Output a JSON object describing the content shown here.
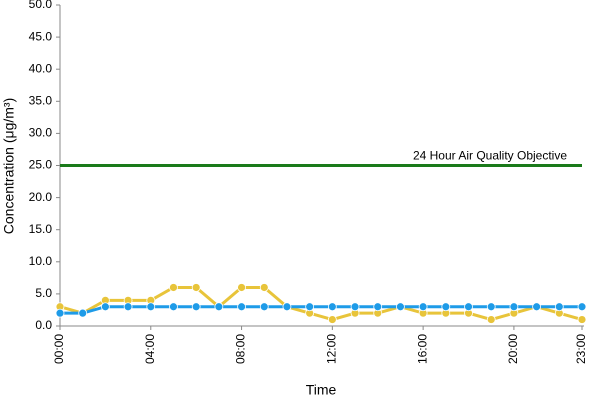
{
  "chart_data": {
    "type": "line",
    "x_label": "Time",
    "y_label": "Concentration (μg/m³)",
    "categories": [
      "00:00",
      null,
      null,
      null,
      "04:00",
      null,
      null,
      null,
      "08:00",
      null,
      null,
      null,
      "12:00",
      null,
      null,
      null,
      "16:00",
      null,
      null,
      null,
      "20:00",
      null,
      null,
      "23:00"
    ],
    "series": [
      {
        "color": "#e8c43a",
        "values": [
          3,
          2,
          4,
          4,
          4,
          6,
          6,
          3,
          6,
          6,
          3,
          2,
          1,
          2,
          2,
          3,
          2,
          2,
          2,
          1,
          2,
          3,
          2,
          1
        ]
      },
      {
        "color": "#1e9be8",
        "values": [
          2,
          2,
          3,
          3,
          3,
          3,
          3,
          3,
          3,
          3,
          3,
          3,
          3,
          3,
          3,
          3,
          3,
          3,
          3,
          3,
          3,
          3,
          3,
          3
        ]
      },
      {
        "name": "24 Hour Air Quality Objective",
        "color": "#1a7a1a",
        "markers": false,
        "values": [
          25,
          25,
          25,
          25,
          25,
          25,
          25,
          25,
          25,
          25,
          25,
          25,
          25,
          25,
          25,
          25,
          25,
          25,
          25,
          25,
          25,
          25,
          25,
          25
        ]
      }
    ],
    "ylim": [
      0,
      50
    ],
    "yticks": [
      {
        "value": 0,
        "label": "0.0"
      },
      {
        "value": 5,
        "label": "5.0"
      },
      {
        "value": 10,
        "label": "10.0"
      },
      {
        "value": 15,
        "label": "15.0"
      },
      {
        "value": 20,
        "label": "20.0"
      },
      {
        "value": 25,
        "label": "25.0"
      },
      {
        "value": 30,
        "label": "30.0"
      },
      {
        "value": 35,
        "label": "35.0"
      },
      {
        "value": 40,
        "label": "40.0"
      },
      {
        "value": 45,
        "label": "45.0"
      },
      {
        "value": 50,
        "label": "50.0"
      }
    ],
    "grid": false
  }
}
